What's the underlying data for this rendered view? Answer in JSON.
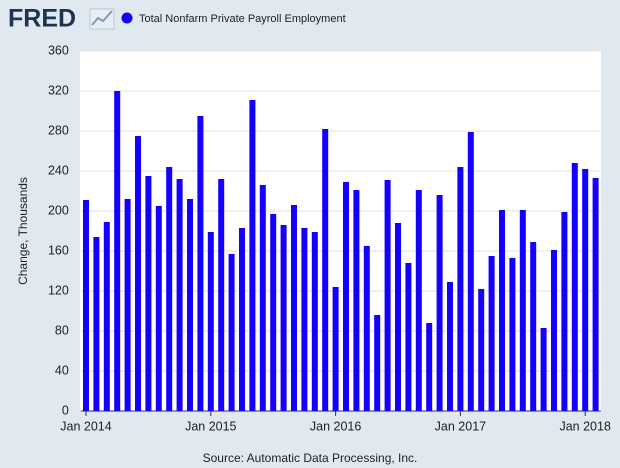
{
  "chart_data": {
    "type": "bar",
    "logo": "FRED",
    "series": [
      {
        "name": "Total Nonfarm Private Payroll Employment",
        "color": "#1400ff",
        "values": [
          211,
          174,
          189,
          320,
          212,
          275,
          235,
          205,
          244,
          232,
          212,
          295,
          179,
          232,
          157,
          183,
          311,
          226,
          197,
          186,
          206,
          183,
          179,
          282,
          124,
          229,
          221,
          165,
          96,
          231,
          188,
          148,
          221,
          88,
          216,
          129,
          244,
          279,
          122,
          155,
          201,
          153,
          201,
          169,
          83,
          161,
          199,
          248,
          242,
          233
        ]
      }
    ],
    "categories": [
      "Jan 2014",
      null,
      null,
      null,
      null,
      null,
      null,
      null,
      null,
      null,
      null,
      null,
      "Jan 2015",
      null,
      null,
      null,
      null,
      null,
      null,
      null,
      null,
      null,
      null,
      null,
      "Jan 2016",
      null,
      null,
      null,
      null,
      null,
      null,
      null,
      null,
      null,
      null,
      null,
      "Jan 2017",
      null,
      null,
      null,
      null,
      null,
      null,
      null,
      null,
      null,
      null,
      null,
      "Jan 2018",
      null
    ],
    "ylabel": "Change, Thousands",
    "ylim": [
      0,
      360
    ],
    "yticks": [
      0,
      40,
      80,
      120,
      160,
      200,
      240,
      280,
      320,
      360
    ],
    "grid": true,
    "source": "Source: Automatic Data Processing, Inc."
  }
}
